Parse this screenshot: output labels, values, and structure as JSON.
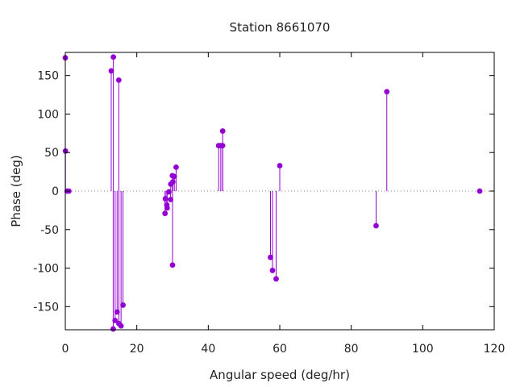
{
  "chart_data": {
    "type": "scatter",
    "style": "impulses-with-points",
    "title": "Station 8661070",
    "xlabel": "Angular speed (deg/hr)",
    "ylabel": "Phase (deg)",
    "xlim": [
      0,
      120
    ],
    "ylim": [
      -180,
      180
    ],
    "xticks": [
      0,
      20,
      40,
      60,
      80,
      100,
      120
    ],
    "yticks": [
      -150,
      -100,
      -50,
      0,
      50,
      100,
      150
    ],
    "xtick_labels": [
      "0",
      "20",
      "40",
      "60",
      "80",
      "100",
      "120"
    ],
    "ytick_labels": [
      "-150",
      "-100",
      "-50",
      "0",
      "50",
      "100",
      "150"
    ],
    "grid": false,
    "zero_line": "dotted",
    "series": [
      {
        "color": "#9400d3",
        "points": [
          {
            "x": 0.0,
            "y": 173
          },
          {
            "x": 0.04,
            "y": 52
          },
          {
            "x": 0.5,
            "y": 0
          },
          {
            "x": 1.0,
            "y": 0
          },
          {
            "x": 12.85,
            "y": 156
          },
          {
            "x": 13.4,
            "y": -179
          },
          {
            "x": 13.45,
            "y": 174
          },
          {
            "x": 13.94,
            "y": -168
          },
          {
            "x": 14.5,
            "y": -157
          },
          {
            "x": 14.96,
            "y": 144
          },
          {
            "x": 15.0,
            "y": -172
          },
          {
            "x": 15.6,
            "y": -175
          },
          {
            "x": 16.14,
            "y": -148
          },
          {
            "x": 27.9,
            "y": -29
          },
          {
            "x": 28.0,
            "y": -10
          },
          {
            "x": 28.4,
            "y": -18
          },
          {
            "x": 28.5,
            "y": -22
          },
          {
            "x": 28.98,
            "y": -1
          },
          {
            "x": 29.46,
            "y": -11
          },
          {
            "x": 29.5,
            "y": 9
          },
          {
            "x": 29.96,
            "y": 20
          },
          {
            "x": 30.0,
            "y": -96
          },
          {
            "x": 30.08,
            "y": 12
          },
          {
            "x": 30.5,
            "y": 19
          },
          {
            "x": 31.0,
            "y": 31
          },
          {
            "x": 42.9,
            "y": 59
          },
          {
            "x": 43.5,
            "y": 59
          },
          {
            "x": 44.0,
            "y": 59
          },
          {
            "x": 44.03,
            "y": 78
          },
          {
            "x": 57.4,
            "y": -86
          },
          {
            "x": 57.97,
            "y": -103
          },
          {
            "x": 58.98,
            "y": -114
          },
          {
            "x": 60.0,
            "y": 33
          },
          {
            "x": 86.95,
            "y": -45
          },
          {
            "x": 89.95,
            "y": 129
          },
          {
            "x": 115.94,
            "y": 0
          }
        ]
      }
    ]
  }
}
